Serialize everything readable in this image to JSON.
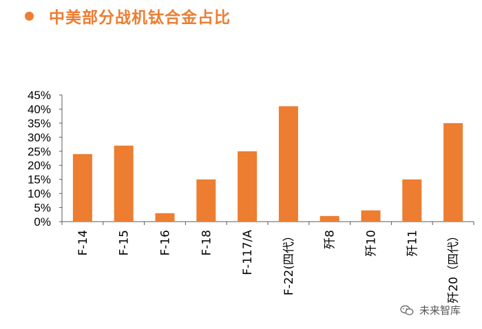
{
  "title": "中美部分战机钛合金占比",
  "watermark": "未来智库",
  "colors": {
    "accent": "#ed7d31",
    "bar": "#ed7d31",
    "axis": "#595959",
    "text": "#000000"
  },
  "chart_data": {
    "type": "bar",
    "title": "中美部分战机钛合金占比",
    "categories": [
      "F-14",
      "F-15",
      "F-16",
      "F-18",
      "F-117/A",
      "F-22(四代）",
      "歼8",
      "歼10",
      "歼11",
      "歼20（四代）"
    ],
    "values": [
      24,
      27,
      3,
      15,
      25,
      41,
      2,
      4,
      15,
      35
    ],
    "y_ticks": [
      "0%",
      "5%",
      "10%",
      "15%",
      "20%",
      "25%",
      "30%",
      "35%",
      "40%",
      "45%"
    ],
    "ylim": [
      0,
      45
    ],
    "xlabel": "",
    "ylabel": "",
    "grid": false,
    "legend": false
  }
}
